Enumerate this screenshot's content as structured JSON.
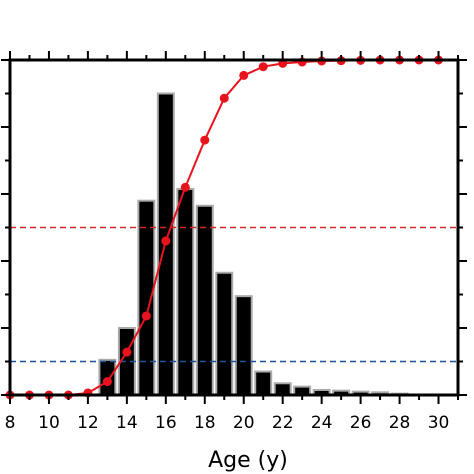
{
  "chart_data": {
    "type": "bar",
    "xlabel": "Age (y)",
    "ylabel": "",
    "title": "",
    "xlim": [
      8,
      31
    ],
    "xticks": [
      8,
      10,
      12,
      14,
      16,
      18,
      20,
      22,
      24,
      26,
      28,
      30
    ],
    "grid": false,
    "histogram": {
      "ylim": [
        0,
        1
      ],
      "x": [
        13,
        14,
        15,
        16,
        17,
        18,
        19,
        20,
        21,
        22,
        23,
        24,
        25,
        26,
        27,
        28
      ],
      "values": [
        0.105,
        0.2,
        0.58,
        0.9,
        0.615,
        0.565,
        0.365,
        0.295,
        0.07,
        0.035,
        0.025,
        0.015,
        0.013,
        0.01,
        0.008,
        0.004
      ],
      "bar_color": "#000000",
      "edge_color": "#aaaaaa"
    },
    "cumulative": {
      "ylim": [
        0,
        1
      ],
      "x": [
        8,
        9,
        10,
        11,
        12,
        13,
        14,
        15,
        16,
        17,
        18,
        19,
        20,
        21,
        22,
        23,
        24,
        25,
        26,
        27,
        28,
        29,
        30
      ],
      "values": [
        0,
        0,
        0,
        0,
        0.006,
        0.04,
        0.128,
        0.236,
        0.46,
        0.62,
        0.761,
        0.886,
        0.954,
        0.98,
        0.99,
        0.994,
        0.997,
        0.998,
        0.999,
        1.0,
        1.0,
        1.0,
        1.0
      ],
      "color": "#e8131c"
    },
    "reference_lines": [
      {
        "value": 0.5,
        "color": "#d62728",
        "style": "dashed"
      },
      {
        "value": 0.1,
        "color": "#1f4fa0",
        "style": "dashed"
      }
    ]
  }
}
